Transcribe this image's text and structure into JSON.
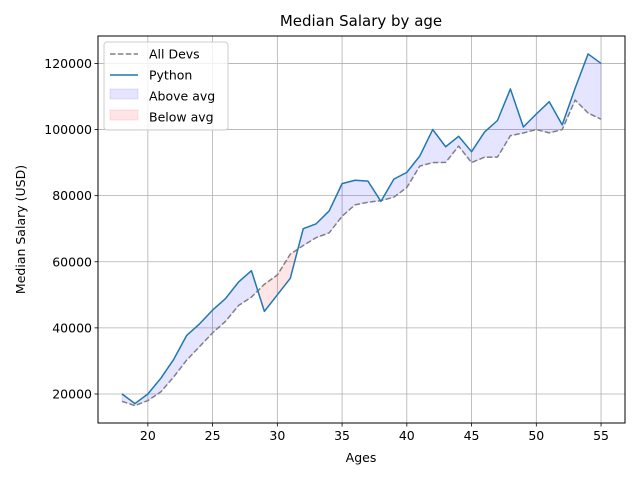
{
  "chart_data": {
    "type": "line",
    "title": "Median Salary by age",
    "xlabel": "Ages",
    "ylabel": "Median Salary (USD)",
    "xlim": [
      16.15,
      56.85
    ],
    "ylim": [
      11225,
      128300
    ],
    "xticks": [
      20,
      25,
      30,
      35,
      40,
      45,
      50,
      55
    ],
    "yticks": [
      20000,
      40000,
      60000,
      80000,
      100000,
      120000
    ],
    "grid": true,
    "legend_position": "upper left",
    "x": [
      18,
      19,
      20,
      21,
      22,
      23,
      24,
      25,
      26,
      27,
      28,
      29,
      30,
      31,
      32,
      33,
      34,
      35,
      36,
      37,
      38,
      39,
      40,
      41,
      42,
      43,
      44,
      45,
      46,
      47,
      48,
      49,
      50,
      51,
      52,
      53,
      54,
      55
    ],
    "series": [
      {
        "name": "All Devs",
        "style": "dashed",
        "color": "#808080",
        "values": [
          17784,
          16500,
          18012,
          20628,
          25206,
          30252,
          34368,
          38496,
          42000,
          46752,
          49320,
          53200,
          56000,
          62316,
          64928,
          67317,
          68748,
          73752,
          77232,
          78000,
          78508,
          79536,
          82488,
          88935,
          90000,
          90056,
          95000,
          90000,
          91633,
          91660,
          98150,
          98964,
          100000,
          98988,
          100000,
          108923,
          105000,
          103117
        ]
      },
      {
        "name": "Python",
        "style": "solid",
        "color": "#1f77b4",
        "values": [
          20046,
          17100,
          20000,
          24744,
          30500,
          37732,
          41247,
          45372,
          48876,
          53850,
          57287,
          45000,
          50000,
          55000,
          70000,
          71496,
          75370,
          83640,
          84666,
          84392,
          78254,
          85000,
          87038,
          91991,
          100000,
          94796,
          97962,
          93302,
          99240,
          102736,
          112285,
          100771,
          104708,
          108423,
          101407,
          112542,
          122870,
          120000
        ]
      }
    ],
    "fills": [
      {
        "name": "Above avg",
        "color": "#0000ff",
        "alpha": 0.1
      },
      {
        "name": "Below avg",
        "color": "#ff0000",
        "alpha": 0.1
      }
    ]
  }
}
